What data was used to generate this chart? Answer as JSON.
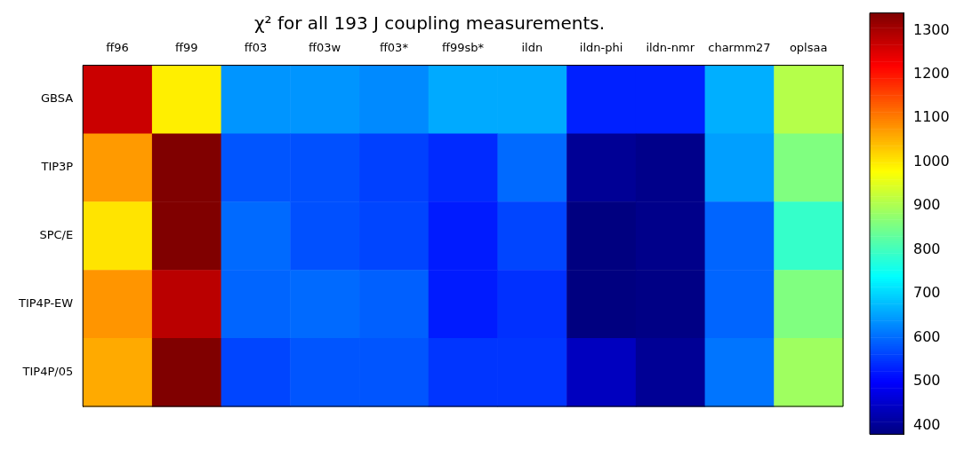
{
  "chart_data": {
    "type": "heatmap",
    "title": "χ² for all 193 J coupling measurements.",
    "categories": [
      "ff96",
      "ff99",
      "ff03",
      "ff03w",
      "ff03*",
      "ff99sb*",
      "ildn",
      "ildn-phi",
      "ildn-nmr",
      "charmm27",
      "oplsaa"
    ],
    "y_categories": [
      "GBSA",
      "TIP3P",
      "SPC/E",
      "TIP4P-EW",
      "TIP4P/05"
    ],
    "cells": [
      [
        1270,
        995,
        640,
        640,
        630,
        660,
        660,
        530,
        530,
        665,
        910
      ],
      [
        1075,
        1340,
        580,
        575,
        560,
        540,
        600,
        400,
        390,
        650,
        860
      ],
      [
        1005,
        1340,
        600,
        575,
        565,
        525,
        565,
        380,
        390,
        595,
        790
      ],
      [
        1080,
        1285,
        595,
        600,
        590,
        525,
        545,
        380,
        385,
        595,
        860
      ],
      [
        1060,
        1340,
        565,
        580,
        580,
        550,
        550,
        440,
        400,
        610,
        890
      ]
    ],
    "clim": [
      380,
      1340
    ],
    "cticks": [
      400,
      500,
      600,
      700,
      800,
      900,
      1000,
      1100,
      1200,
      1300
    ]
  }
}
